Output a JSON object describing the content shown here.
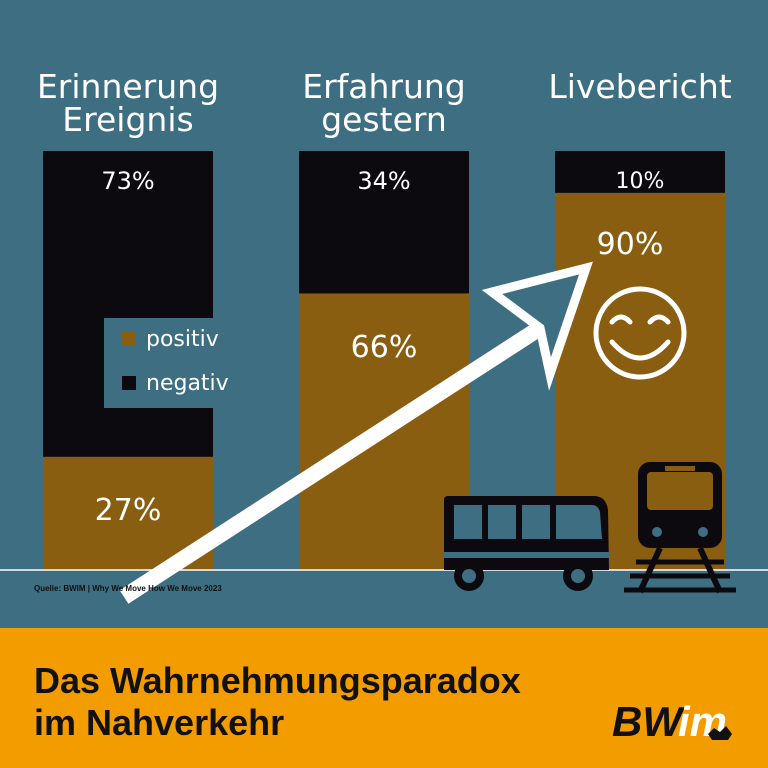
{
  "chart_data": {
    "type": "bar",
    "stacked": true,
    "categories": [
      "Erinnerung\nEreignis",
      "Erfahrung\ngestern",
      "Livebericht"
    ],
    "series": [
      {
        "name": "positiv",
        "values": [
          27,
          66,
          90
        ],
        "labels": [
          "27%",
          "66%",
          "90%"
        ],
        "color": "#8a5e10"
      },
      {
        "name": "negativ",
        "values": [
          73,
          34,
          10
        ],
        "labels": [
          "73%",
          "34%",
          "10%"
        ],
        "color": "#0c0a0f"
      }
    ],
    "ylim": [
      0,
      100
    ],
    "legend_position": "left-middle"
  },
  "legend": {
    "items": [
      {
        "label": "positiv",
        "color": "#8a5e10"
      },
      {
        "label": "negativ",
        "color": "#0c0a0f"
      }
    ]
  },
  "source": "Quelle: BWIM | Why We Move How We Move 2023",
  "footer": {
    "title": "Das Wahrnehmungsparadox\nim Nahverkehr"
  },
  "logo": {
    "text": "BWim"
  },
  "colors": {
    "background": "#3e6e82",
    "footer": "#f39c00",
    "positive": "#8a5e10",
    "negative": "#0c0a0f",
    "baseline": "#ffffff"
  },
  "icons": [
    "trend-arrow-icon",
    "smiley-icon",
    "bus-icon",
    "train-icon"
  ]
}
